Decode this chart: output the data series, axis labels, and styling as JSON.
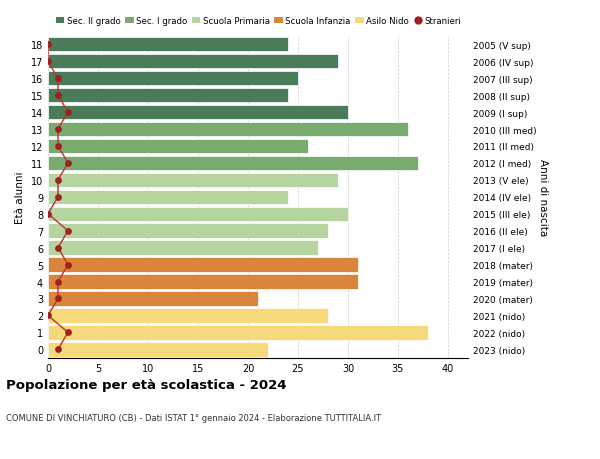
{
  "ages": [
    18,
    17,
    16,
    15,
    14,
    13,
    12,
    11,
    10,
    9,
    8,
    7,
    6,
    5,
    4,
    3,
    2,
    1,
    0
  ],
  "right_labels": [
    "2005 (V sup)",
    "2006 (IV sup)",
    "2007 (III sup)",
    "2008 (II sup)",
    "2009 (I sup)",
    "2010 (III med)",
    "2011 (II med)",
    "2012 (I med)",
    "2013 (V ele)",
    "2014 (IV ele)",
    "2015 (III ele)",
    "2016 (II ele)",
    "2017 (I ele)",
    "2018 (mater)",
    "2019 (mater)",
    "2020 (mater)",
    "2021 (nido)",
    "2022 (nido)",
    "2023 (nido)"
  ],
  "bar_values": [
    24,
    29,
    25,
    24,
    30,
    36,
    26,
    37,
    29,
    24,
    30,
    28,
    27,
    31,
    31,
    21,
    28,
    38,
    22
  ],
  "bar_colors": [
    "#4a7c59",
    "#4a7c59",
    "#4a7c59",
    "#4a7c59",
    "#4a7c59",
    "#7aab6e",
    "#7aab6e",
    "#7aab6e",
    "#b5d4a0",
    "#b5d4a0",
    "#b5d4a0",
    "#b5d4a0",
    "#b5d4a0",
    "#d9863a",
    "#d9863a",
    "#d9863a",
    "#f5d97a",
    "#f5d97a",
    "#f5d97a"
  ],
  "stranieri_values": [
    0,
    0,
    1,
    1,
    2,
    1,
    1,
    2,
    1,
    1,
    0,
    2,
    1,
    2,
    1,
    1,
    0,
    2,
    1
  ],
  "legend_labels": [
    "Sec. II grado",
    "Sec. I grado",
    "Scuola Primaria",
    "Scuola Infanzia",
    "Asilo Nido",
    "Stranieri"
  ],
  "legend_colors": [
    "#4a7c59",
    "#7aab6e",
    "#b5d4a0",
    "#d9863a",
    "#f5d97a",
    "#a02020"
  ],
  "title": "Popolazione per età scolastica - 2024",
  "subtitle": "COMUNE DI VINCHIATURO (CB) - Dati ISTAT 1° gennaio 2024 - Elaborazione TUTTITALIA.IT",
  "ylabel_left": "Età alunni",
  "ylabel_right": "Anni di nascita",
  "xlim": [
    0,
    42
  ],
  "xticks": [
    0,
    5,
    10,
    15,
    20,
    25,
    30,
    35,
    40
  ],
  "background_color": "#ffffff",
  "grid_color": "#cccccc",
  "stranieri_color": "#a02020",
  "stranieri_line_color": "#c03030"
}
